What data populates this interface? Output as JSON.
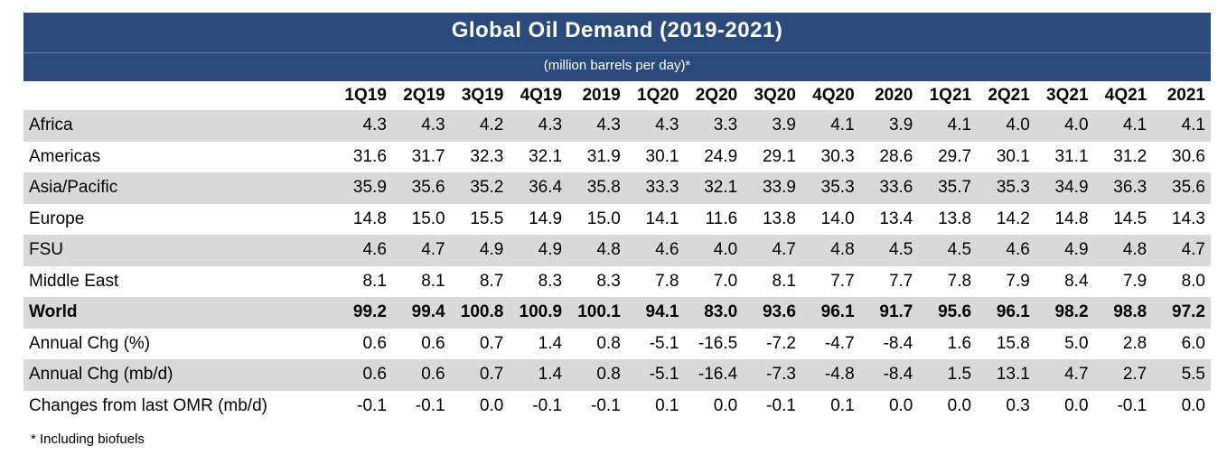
{
  "title": "Global Oil Demand (2019-2021)",
  "subtitle": "(million barrels per day)*",
  "footnote": "*  Including biofuels",
  "colors": {
    "header_bg": "#2a4a7c",
    "row_shade": "#d9d9d9"
  },
  "chart_data": {
    "type": "table",
    "columns": [
      "1Q19",
      "2Q19",
      "3Q19",
      "4Q19",
      "2019",
      "1Q20",
      "2Q20",
      "3Q20",
      "4Q20",
      "2020",
      "1Q21",
      "2Q21",
      "3Q21",
      "4Q21",
      "2021"
    ],
    "rows": [
      {
        "label": "Africa",
        "values": [
          "4.3",
          "4.3",
          "4.2",
          "4.3",
          "4.3",
          "4.3",
          "3.3",
          "3.9",
          "4.1",
          "3.9",
          "4.1",
          "4.0",
          "4.0",
          "4.1",
          "4.1"
        ],
        "shaded": true
      },
      {
        "label": "Americas",
        "values": [
          "31.6",
          "31.7",
          "32.3",
          "32.1",
          "31.9",
          "30.1",
          "24.9",
          "29.1",
          "30.3",
          "28.6",
          "29.7",
          "30.1",
          "31.1",
          "31.2",
          "30.6"
        ],
        "shaded": false
      },
      {
        "label": "Asia/Pacific",
        "values": [
          "35.9",
          "35.6",
          "35.2",
          "36.4",
          "35.8",
          "33.3",
          "32.1",
          "33.9",
          "35.3",
          "33.6",
          "35.7",
          "35.3",
          "34.9",
          "36.3",
          "35.6"
        ],
        "shaded": true
      },
      {
        "label": "Europe",
        "values": [
          "14.8",
          "15.0",
          "15.5",
          "14.9",
          "15.0",
          "14.1",
          "11.6",
          "13.8",
          "14.0",
          "13.4",
          "13.8",
          "14.2",
          "14.8",
          "14.5",
          "14.3"
        ],
        "shaded": false
      },
      {
        "label": "FSU",
        "values": [
          "4.6",
          "4.7",
          "4.9",
          "4.9",
          "4.8",
          "4.6",
          "4.0",
          "4.7",
          "4.8",
          "4.5",
          "4.5",
          "4.6",
          "4.9",
          "4.8",
          "4.7"
        ],
        "shaded": true
      },
      {
        "label": "Middle East",
        "values": [
          "8.1",
          "8.1",
          "8.7",
          "8.3",
          "8.3",
          "7.8",
          "7.0",
          "8.1",
          "7.7",
          "7.7",
          "7.8",
          "7.9",
          "8.4",
          "7.9",
          "8.0"
        ],
        "shaded": false
      },
      {
        "label": "World",
        "values": [
          "99.2",
          "99.4",
          "100.8",
          "100.9",
          "100.1",
          "94.1",
          "83.0",
          "93.6",
          "96.1",
          "91.7",
          "95.6",
          "96.1",
          "98.2",
          "98.8",
          "97.2"
        ],
        "shaded": true,
        "bold": true
      },
      {
        "label": "Annual Chg (%)",
        "values": [
          "0.6",
          "0.6",
          "0.7",
          "1.4",
          "0.8",
          "-5.1",
          "-16.5",
          "-7.2",
          "-4.7",
          "-8.4",
          "1.6",
          "15.8",
          "5.0",
          "2.8",
          "6.0"
        ],
        "shaded": false
      },
      {
        "label": "Annual Chg (mb/d)",
        "values": [
          "0.6",
          "0.6",
          "0.7",
          "1.4",
          "0.8",
          "-5.1",
          "-16.4",
          "-7.3",
          "-4.8",
          "-8.4",
          "1.5",
          "13.1",
          "4.7",
          "2.7",
          "5.5"
        ],
        "shaded": true
      },
      {
        "label": "Changes from last OMR (mb/d)",
        "values": [
          "-0.1",
          "-0.1",
          "0.0",
          "-0.1",
          "-0.1",
          "0.1",
          "0.0",
          "-0.1",
          "0.1",
          "0.0",
          "0.0",
          "0.3",
          "0.0",
          "-0.1",
          "0.0"
        ],
        "shaded": false
      }
    ]
  }
}
